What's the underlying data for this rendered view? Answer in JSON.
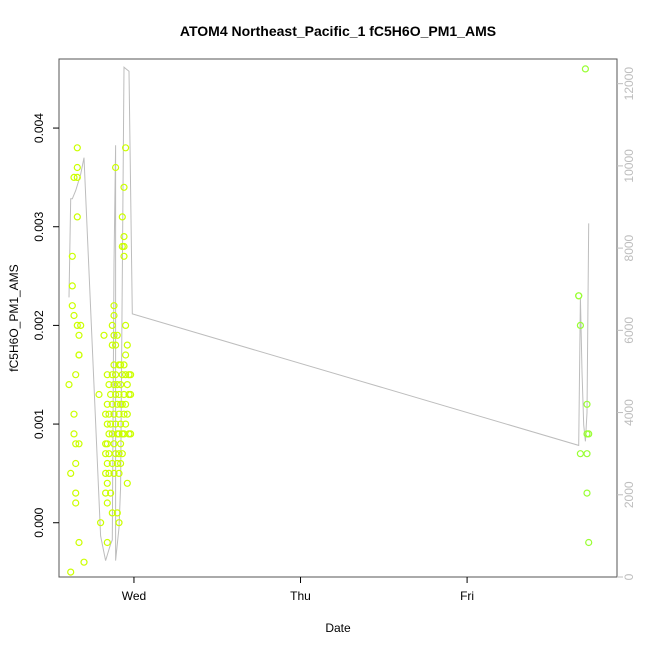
{
  "chart_data": {
    "type": "scatter",
    "title": "ATOM4 Northeast_Pacific_1 fC5H6O_PM1_AMS",
    "xlabel": "Date",
    "ylabel": "fC5H6O_PM1_AMS",
    "x_ticks": [
      "Wed",
      "Thu",
      "Fri"
    ],
    "x_tick_positions": [
      1.0,
      2.0,
      3.0
    ],
    "xlim": [
      0.55,
      3.9
    ],
    "ylim": [
      -0.00055,
      0.0047
    ],
    "y_ticks": [
      0.0,
      0.001,
      0.002,
      0.003,
      0.004
    ],
    "y_tick_labels": [
      "0.000",
      "0.001",
      "0.002",
      "0.003",
      "0.004"
    ],
    "right_axis": {
      "ylim": [
        0,
        12600
      ],
      "ticks": [
        0,
        2000,
        4000,
        6000,
        8000,
        10000,
        12000
      ],
      "tick_labels": [
        "0",
        "2000",
        "4000",
        "6000",
        "8000",
        "10000",
        "12000"
      ],
      "color": "#bdbdbd"
    },
    "colors": {
      "points_early": "#ccff00",
      "points_late": "#99ff33",
      "line": "#bdbdbd",
      "frame": "#555555"
    },
    "series": [
      {
        "kind": "points",
        "points": [
          [
            0.61,
            0.0014
          ],
          [
            0.62,
            0.0005
          ],
          [
            0.62,
            -0.0005
          ],
          [
            0.63,
            0.0022
          ],
          [
            0.63,
            0.0027
          ],
          [
            0.63,
            0.0024
          ],
          [
            0.64,
            0.0021
          ],
          [
            0.64,
            0.0011
          ],
          [
            0.64,
            0.0009
          ],
          [
            0.64,
            0.0035
          ],
          [
            0.65,
            0.0006
          ],
          [
            0.65,
            0.0003
          ],
          [
            0.65,
            0.0002
          ],
          [
            0.65,
            0.0015
          ],
          [
            0.65,
            0.0008
          ],
          [
            0.66,
            0.0036
          ],
          [
            0.66,
            0.0038
          ],
          [
            0.66,
            0.0031
          ],
          [
            0.66,
            0.0035
          ],
          [
            0.66,
            0.002
          ],
          [
            0.67,
            0.0019
          ],
          [
            0.67,
            0.0017
          ],
          [
            0.67,
            0.0017
          ],
          [
            0.67,
            0.0008
          ],
          [
            0.67,
            -0.0002
          ],
          [
            0.68,
            0.002
          ],
          [
            0.7,
            -0.0004
          ],
          [
            0.79,
            0.0013
          ],
          [
            0.8,
            0.0
          ],
          [
            0.82,
            0.0019
          ],
          [
            0.83,
            0.0011
          ],
          [
            0.83,
            0.0008
          ],
          [
            0.83,
            0.0007
          ],
          [
            0.83,
            0.0005
          ],
          [
            0.83,
            0.0003
          ],
          [
            0.84,
            0.0015
          ],
          [
            0.84,
            0.0012
          ],
          [
            0.84,
            0.001
          ],
          [
            0.84,
            0.0008
          ],
          [
            0.84,
            0.0006
          ],
          [
            0.84,
            0.0004
          ],
          [
            0.84,
            0.0002
          ],
          [
            0.84,
            -0.0002
          ],
          [
            0.85,
            0.0014
          ],
          [
            0.85,
            0.0011
          ],
          [
            0.85,
            0.0009
          ],
          [
            0.85,
            0.0007
          ],
          [
            0.85,
            0.0005
          ],
          [
            0.86,
            0.0013
          ],
          [
            0.86,
            0.001
          ],
          [
            0.86,
            0.0003
          ],
          [
            0.87,
            0.002
          ],
          [
            0.87,
            0.0018
          ],
          [
            0.87,
            0.0015
          ],
          [
            0.87,
            0.0012
          ],
          [
            0.87,
            0.0009
          ],
          [
            0.87,
            0.0006
          ],
          [
            0.87,
            0.0001
          ],
          [
            0.88,
            0.0022
          ],
          [
            0.88,
            0.0021
          ],
          [
            0.88,
            0.0019
          ],
          [
            0.88,
            0.0016
          ],
          [
            0.88,
            0.0014
          ],
          [
            0.88,
            0.0011
          ],
          [
            0.88,
            0.0008
          ],
          [
            0.88,
            0.0005
          ],
          [
            0.89,
            0.0036
          ],
          [
            0.89,
            0.0018
          ],
          [
            0.89,
            0.0015
          ],
          [
            0.89,
            0.0013
          ],
          [
            0.89,
            0.001
          ],
          [
            0.89,
            0.0007
          ],
          [
            0.9,
            0.0019
          ],
          [
            0.9,
            0.0014
          ],
          [
            0.9,
            0.0012
          ],
          [
            0.9,
            0.0009
          ],
          [
            0.9,
            0.0006
          ],
          [
            0.9,
            0.0001
          ],
          [
            0.91,
            0.0016
          ],
          [
            0.91,
            0.0013
          ],
          [
            0.91,
            0.0011
          ],
          [
            0.91,
            0.0009
          ],
          [
            0.91,
            0.0007
          ],
          [
            0.91,
            0.0005
          ],
          [
            0.91,
            0.0
          ],
          [
            0.92,
            0.0016
          ],
          [
            0.92,
            0.0014
          ],
          [
            0.92,
            0.0012
          ],
          [
            0.92,
            0.001
          ],
          [
            0.92,
            0.0008
          ],
          [
            0.92,
            0.0006
          ],
          [
            0.93,
            0.0031
          ],
          [
            0.93,
            0.0028
          ],
          [
            0.93,
            0.0015
          ],
          [
            0.93,
            0.0012
          ],
          [
            0.93,
            0.0009
          ],
          [
            0.93,
            0.0007
          ],
          [
            0.94,
            0.0034
          ],
          [
            0.94,
            0.0029
          ],
          [
            0.94,
            0.0028
          ],
          [
            0.94,
            0.0027
          ],
          [
            0.94,
            0.0016
          ],
          [
            0.94,
            0.0013
          ],
          [
            0.94,
            0.0011
          ],
          [
            0.94,
            0.0009
          ],
          [
            0.95,
            0.0038
          ],
          [
            0.95,
            0.002
          ],
          [
            0.95,
            0.0017
          ],
          [
            0.95,
            0.0015
          ],
          [
            0.95,
            0.0012
          ],
          [
            0.95,
            0.001
          ],
          [
            0.96,
            0.0018
          ],
          [
            0.96,
            0.0014
          ],
          [
            0.96,
            0.0011
          ],
          [
            0.96,
            0.0004
          ],
          [
            0.97,
            0.0015
          ],
          [
            0.97,
            0.0013
          ],
          [
            0.97,
            0.0009
          ],
          [
            0.98,
            0.0015
          ],
          [
            0.98,
            0.0013
          ],
          [
            0.98,
            0.0009
          ],
          [
            3.67,
            0.0023
          ],
          [
            3.67,
            0.0023
          ],
          [
            3.68,
            0.002
          ],
          [
            3.68,
            0.0007
          ],
          [
            3.71,
            0.0046
          ],
          [
            3.72,
            0.0012
          ],
          [
            3.72,
            0.0009
          ],
          [
            3.72,
            0.0007
          ],
          [
            3.72,
            0.0003
          ],
          [
            3.73,
            0.0009
          ],
          [
            3.73,
            -0.0002
          ]
        ]
      },
      {
        "kind": "line",
        "axis": "right",
        "points": [
          [
            0.61,
            6800
          ],
          [
            0.62,
            9200
          ],
          [
            0.63,
            9200
          ],
          [
            0.65,
            9400
          ],
          [
            0.68,
            9800
          ],
          [
            0.7,
            10200
          ],
          [
            0.8,
            1000
          ],
          [
            0.83,
            400
          ],
          [
            0.86,
            800
          ],
          [
            0.87,
            900
          ],
          [
            0.88,
            7600
          ],
          [
            0.89,
            10500
          ],
          [
            0.89,
            400
          ],
          [
            0.9,
            800
          ],
          [
            0.91,
            1200
          ],
          [
            0.92,
            2200
          ],
          [
            0.94,
            12400
          ],
          [
            0.97,
            12300
          ],
          [
            0.99,
            6400
          ],
          [
            3.67,
            3200
          ],
          [
            3.68,
            6800
          ],
          [
            3.69,
            5000
          ],
          [
            3.7,
            3700
          ],
          [
            3.71,
            3300
          ],
          [
            3.72,
            4000
          ],
          [
            3.73,
            8600
          ]
        ]
      }
    ]
  }
}
